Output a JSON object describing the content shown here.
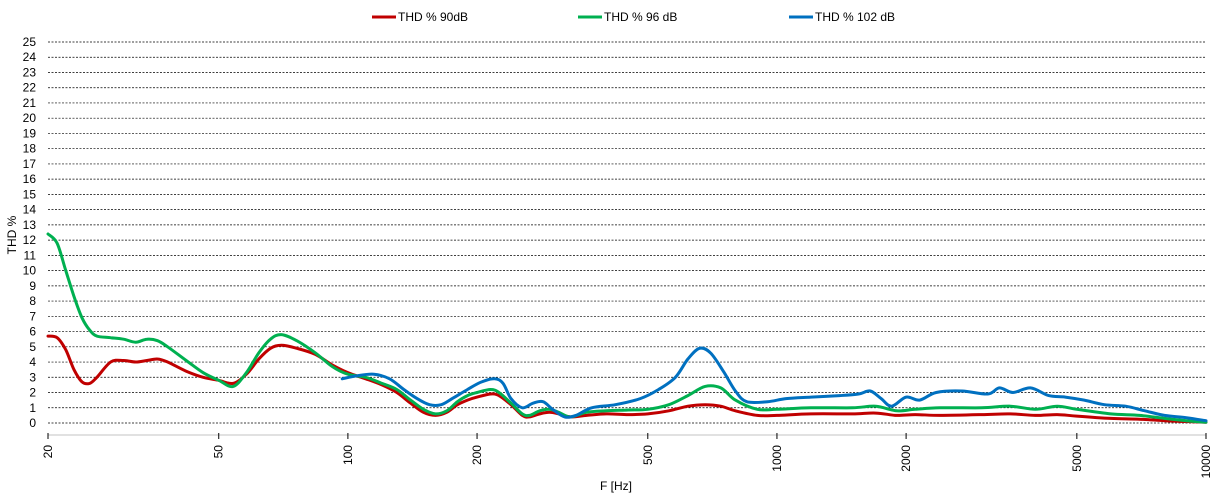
{
  "chart_data": {
    "type": "line",
    "xlabel": "F [Hz]",
    "ylabel": "THD %",
    "x_scale": "log",
    "xlim": [
      20,
      10000
    ],
    "ylim": [
      0,
      25
    ],
    "y_ticks": [
      0,
      1,
      2,
      3,
      4,
      5,
      6,
      7,
      8,
      9,
      10,
      11,
      12,
      13,
      14,
      15,
      16,
      17,
      18,
      19,
      20,
      21,
      22,
      23,
      24,
      25
    ],
    "x_ticks": [
      20,
      50,
      100,
      200,
      500,
      1000,
      2000,
      5000,
      10000
    ],
    "x_tick_labels": [
      "20",
      "50",
      "100",
      "200",
      "500",
      "1000",
      "2000",
      "5000",
      "10000"
    ],
    "grid": "horizontal dashed",
    "legend_position": "top",
    "series": [
      {
        "name": "THD % 90dB",
        "color": "#c00000",
        "points": [
          [
            20,
            5.7
          ],
          [
            21,
            5.6
          ],
          [
            22,
            4.8
          ],
          [
            23,
            3.5
          ],
          [
            24,
            2.7
          ],
          [
            25,
            2.6
          ],
          [
            26,
            3.0
          ],
          [
            28,
            4.0
          ],
          [
            30,
            4.1
          ],
          [
            32,
            4.0
          ],
          [
            34,
            4.1
          ],
          [
            36,
            4.2
          ],
          [
            38,
            4.0
          ],
          [
            42,
            3.4
          ],
          [
            46,
            3.0
          ],
          [
            50,
            2.8
          ],
          [
            54,
            2.6
          ],
          [
            58,
            3.2
          ],
          [
            62,
            4.2
          ],
          [
            66,
            4.9
          ],
          [
            70,
            5.1
          ],
          [
            76,
            4.9
          ],
          [
            84,
            4.5
          ],
          [
            92,
            3.8
          ],
          [
            100,
            3.3
          ],
          [
            110,
            2.9
          ],
          [
            120,
            2.5
          ],
          [
            130,
            2.0
          ],
          [
            140,
            1.3
          ],
          [
            150,
            0.7
          ],
          [
            160,
            0.5
          ],
          [
            170,
            0.7
          ],
          [
            180,
            1.2
          ],
          [
            190,
            1.5
          ],
          [
            200,
            1.7
          ],
          [
            215,
            1.9
          ],
          [
            225,
            1.8
          ],
          [
            240,
            1.2
          ],
          [
            255,
            0.5
          ],
          [
            265,
            0.4
          ],
          [
            280,
            0.6
          ],
          [
            295,
            0.7
          ],
          [
            310,
            0.6
          ],
          [
            330,
            0.4
          ],
          [
            360,
            0.5
          ],
          [
            400,
            0.6
          ],
          [
            450,
            0.55
          ],
          [
            500,
            0.6
          ],
          [
            560,
            0.8
          ],
          [
            620,
            1.1
          ],
          [
            680,
            1.2
          ],
          [
            740,
            1.1
          ],
          [
            800,
            0.8
          ],
          [
            900,
            0.5
          ],
          [
            1000,
            0.5
          ],
          [
            1200,
            0.6
          ],
          [
            1500,
            0.6
          ],
          [
            1700,
            0.65
          ],
          [
            1900,
            0.5
          ],
          [
            2100,
            0.55
          ],
          [
            2400,
            0.5
          ],
          [
            3000,
            0.55
          ],
          [
            3500,
            0.6
          ],
          [
            4000,
            0.5
          ],
          [
            4500,
            0.55
          ],
          [
            5000,
            0.45
          ],
          [
            6000,
            0.3
          ],
          [
            7000,
            0.25
          ],
          [
            8000,
            0.15
          ],
          [
            9000,
            0.1
          ],
          [
            10000,
            0.05
          ]
        ]
      },
      {
        "name": "THD % 96 dB",
        "color": "#00b050",
        "points": [
          [
            20,
            12.4
          ],
          [
            21,
            11.8
          ],
          [
            22,
            10.0
          ],
          [
            23,
            8.3
          ],
          [
            24,
            6.9
          ],
          [
            25,
            6.1
          ],
          [
            26,
            5.7
          ],
          [
            28,
            5.6
          ],
          [
            30,
            5.5
          ],
          [
            32,
            5.3
          ],
          [
            34,
            5.5
          ],
          [
            36,
            5.4
          ],
          [
            38,
            5.0
          ],
          [
            42,
            4.1
          ],
          [
            46,
            3.3
          ],
          [
            50,
            2.8
          ],
          [
            54,
            2.4
          ],
          [
            58,
            3.3
          ],
          [
            62,
            4.6
          ],
          [
            66,
            5.5
          ],
          [
            70,
            5.8
          ],
          [
            76,
            5.4
          ],
          [
            84,
            4.6
          ],
          [
            92,
            3.7
          ],
          [
            100,
            3.2
          ],
          [
            110,
            3.0
          ],
          [
            120,
            2.6
          ],
          [
            130,
            2.2
          ],
          [
            140,
            1.5
          ],
          [
            150,
            0.9
          ],
          [
            160,
            0.6
          ],
          [
            170,
            0.8
          ],
          [
            180,
            1.4
          ],
          [
            190,
            1.8
          ],
          [
            200,
            2.0
          ],
          [
            215,
            2.2
          ],
          [
            225,
            2.0
          ],
          [
            240,
            1.3
          ],
          [
            255,
            0.6
          ],
          [
            265,
            0.5
          ],
          [
            280,
            0.8
          ],
          [
            295,
            0.9
          ],
          [
            310,
            0.7
          ],
          [
            330,
            0.4
          ],
          [
            360,
            0.7
          ],
          [
            400,
            0.8
          ],
          [
            450,
            0.85
          ],
          [
            500,
            0.9
          ],
          [
            560,
            1.2
          ],
          [
            620,
            1.8
          ],
          [
            680,
            2.4
          ],
          [
            740,
            2.3
          ],
          [
            800,
            1.5
          ],
          [
            900,
            0.9
          ],
          [
            1000,
            0.9
          ],
          [
            1200,
            1.0
          ],
          [
            1500,
            1.0
          ],
          [
            1700,
            1.1
          ],
          [
            1900,
            0.8
          ],
          [
            2100,
            0.9
          ],
          [
            2400,
            1.0
          ],
          [
            3000,
            1.0
          ],
          [
            3500,
            1.1
          ],
          [
            4000,
            0.9
          ],
          [
            4500,
            1.1
          ],
          [
            5000,
            0.9
          ],
          [
            6000,
            0.6
          ],
          [
            7000,
            0.5
          ],
          [
            8000,
            0.3
          ],
          [
            9000,
            0.15
          ],
          [
            10000,
            0.05
          ]
        ]
      },
      {
        "name": "THD % 102 dB",
        "color": "#0070c0",
        "points": [
          [
            97,
            2.9
          ],
          [
            105,
            3.1
          ],
          [
            115,
            3.2
          ],
          [
            125,
            2.9
          ],
          [
            135,
            2.2
          ],
          [
            145,
            1.6
          ],
          [
            155,
            1.2
          ],
          [
            165,
            1.2
          ],
          [
            175,
            1.6
          ],
          [
            190,
            2.2
          ],
          [
            205,
            2.7
          ],
          [
            220,
            2.9
          ],
          [
            230,
            2.6
          ],
          [
            240,
            1.6
          ],
          [
            255,
            1.0
          ],
          [
            270,
            1.3
          ],
          [
            285,
            1.4
          ],
          [
            300,
            0.9
          ],
          [
            320,
            0.4
          ],
          [
            340,
            0.5
          ],
          [
            370,
            1.0
          ],
          [
            420,
            1.2
          ],
          [
            480,
            1.6
          ],
          [
            530,
            2.2
          ],
          [
            580,
            3.0
          ],
          [
            620,
            4.2
          ],
          [
            660,
            4.9
          ],
          [
            700,
            4.6
          ],
          [
            750,
            3.4
          ],
          [
            800,
            2.1
          ],
          [
            850,
            1.4
          ],
          [
            950,
            1.4
          ],
          [
            1050,
            1.6
          ],
          [
            1200,
            1.7
          ],
          [
            1400,
            1.8
          ],
          [
            1550,
            1.9
          ],
          [
            1650,
            2.1
          ],
          [
            1750,
            1.6
          ],
          [
            1850,
            1.1
          ],
          [
            2000,
            1.7
          ],
          [
            2150,
            1.5
          ],
          [
            2350,
            2.0
          ],
          [
            2700,
            2.1
          ],
          [
            3100,
            1.9
          ],
          [
            3300,
            2.3
          ],
          [
            3550,
            2.0
          ],
          [
            3900,
            2.3
          ],
          [
            4300,
            1.8
          ],
          [
            4700,
            1.7
          ],
          [
            5200,
            1.5
          ],
          [
            5800,
            1.2
          ],
          [
            6500,
            1.1
          ],
          [
            7200,
            0.8
          ],
          [
            8000,
            0.5
          ],
          [
            9000,
            0.35
          ],
          [
            10000,
            0.15
          ]
        ]
      }
    ]
  }
}
